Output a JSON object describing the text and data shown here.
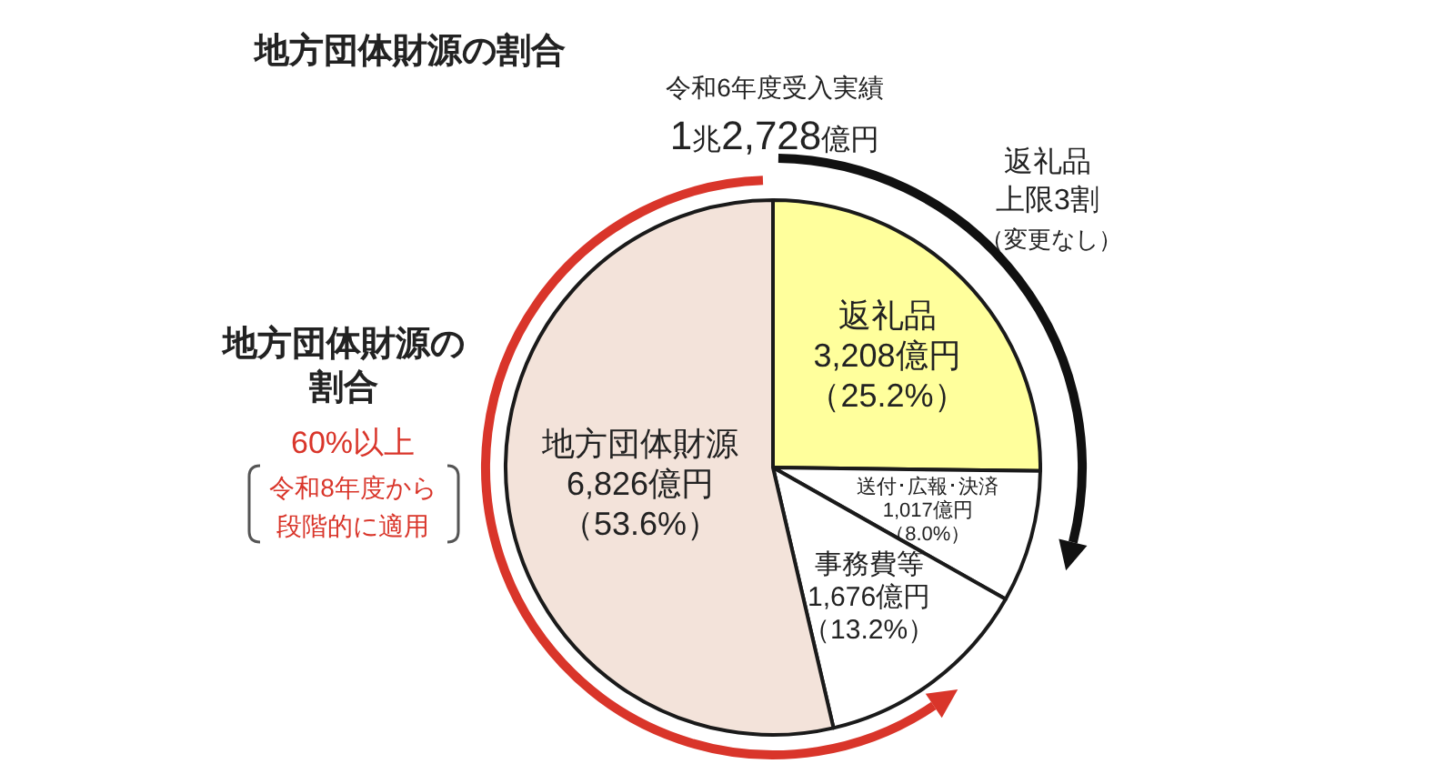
{
  "chart_data": {
    "type": "pie",
    "title": "地方団体財源の割合",
    "categories": [
      "返礼品",
      "送付･広報･決済",
      "事務費等",
      "地方団体財源"
    ],
    "values": [
      3208,
      1017,
      1676,
      6826
    ],
    "colors": [
      "#ffff9c",
      "#ffffff",
      "#ffffff",
      "#f3e3da"
    ],
    "value_labels": [
      "3,208億円（25.2%）",
      "1,017億円（8.0%）",
      "1,676億円（13.2%）",
      "6,826億円（53.6%）"
    ],
    "annotations": [
      "令和6年度受入実績",
      "1兆2,728億円",
      "返礼品",
      "上限3割",
      "（変更なし）",
      "地方団体財源の",
      "割合",
      "60%以上",
      "令和8年度から",
      "段階的に適用"
    ]
  }
}
